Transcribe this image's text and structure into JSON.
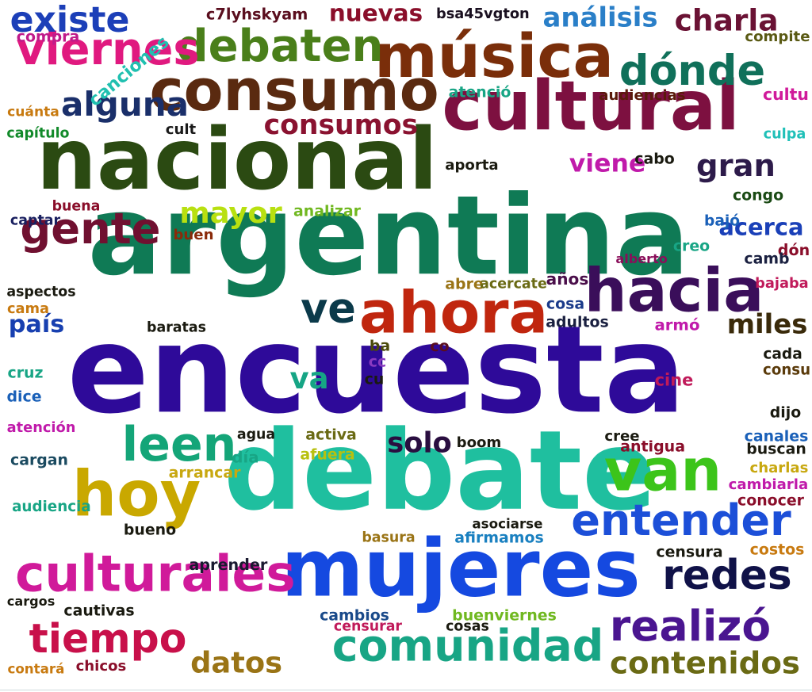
{
  "word_cloud": {
    "background": "#ffffff",
    "words": [
      {
        "text": "encuesta",
        "color": "#2E0A99"
      },
      {
        "text": "argentina",
        "color": "#0F7A55"
      },
      {
        "text": "debate",
        "color": "#1FBF9F"
      },
      {
        "text": "nacional",
        "color": "#2B4A12"
      },
      {
        "text": "mujeres",
        "color": "#1549E0"
      },
      {
        "text": "cultural",
        "color": "#7D1040"
      },
      {
        "text": "consumo",
        "color": "#5A2A10"
      },
      {
        "text": "música",
        "color": "#7A2E0A"
      },
      {
        "text": "hoy",
        "color": "#C9A800"
      },
      {
        "text": "culturales",
        "color": "#D01A9A"
      },
      {
        "text": "hacia",
        "color": "#3A0E5A"
      },
      {
        "text": "ahora",
        "color": "#C0260E"
      },
      {
        "text": "debaten",
        "color": "#4A7F1A"
      },
      {
        "text": "comunidad",
        "color": "#18A585"
      },
      {
        "text": "tiempo",
        "color": "#C8104A"
      },
      {
        "text": "van",
        "color": "#3CC41A"
      },
      {
        "text": "realizó",
        "color": "#4A1590"
      },
      {
        "text": "entender",
        "color": "#1C4FD8"
      },
      {
        "text": "viernes",
        "color": "#E0197F"
      },
      {
        "text": "dónde",
        "color": "#10705A"
      },
      {
        "text": "gran",
        "color": "#2D1B4A"
      },
      {
        "text": "redes",
        "color": "#101248"
      },
      {
        "text": "leen",
        "color": "#14A578"
      },
      {
        "text": "gente",
        "color": "#701030"
      },
      {
        "text": "ve",
        "color": "#0B3A4A"
      },
      {
        "text": "datos",
        "color": "#9A7416"
      },
      {
        "text": "contenidos",
        "color": "#6A6A14"
      },
      {
        "text": "nuevas",
        "color": "#8A0E2A"
      },
      {
        "text": "existe",
        "color": "#1C3FB8"
      },
      {
        "text": "charla",
        "color": "#6A1234"
      },
      {
        "text": "análisis",
        "color": "#2A7FC8"
      },
      {
        "text": "consumos",
        "color": "#8A1230"
      },
      {
        "text": "alguna",
        "color": "#1A2F6A"
      },
      {
        "text": "mayor",
        "color": "#B8E010"
      },
      {
        "text": "viene",
        "color": "#C01AAA"
      },
      {
        "text": "acerca",
        "color": "#1A40B8"
      },
      {
        "text": "país",
        "color": "#1840B0"
      },
      {
        "text": "miles",
        "color": "#3A2A0A"
      },
      {
        "text": "solo",
        "color": "#2A0E40"
      },
      {
        "text": "va",
        "color": "#16A585"
      },
      {
        "text": "c7lyhskyam",
        "color": "#5A0E1E"
      },
      {
        "text": "bsa45vgton",
        "color": "#1A1020"
      },
      {
        "text": "compra",
        "color": "#C01A8A"
      },
      {
        "text": "compite",
        "color": "#5A5A14"
      },
      {
        "text": "canciones",
        "color": "#20C0B0"
      },
      {
        "text": "atenció",
        "color": "#18A585"
      },
      {
        "text": "audiencias",
        "color": "#5A1A0A"
      },
      {
        "text": "cultu",
        "color": "#D01A9A"
      },
      {
        "text": "cuánta",
        "color": "#C87A10"
      },
      {
        "text": "capítulo",
        "color": "#128A2A"
      },
      {
        "text": "cult",
        "color": "#1A1A1A"
      },
      {
        "text": "culpa",
        "color": "#20C0B8"
      },
      {
        "text": "aporta",
        "color": "#1A1A10"
      },
      {
        "text": "cabo",
        "color": "#1A1A10"
      },
      {
        "text": "congo",
        "color": "#1A4A14"
      },
      {
        "text": "buena",
        "color": "#8A0E2A"
      },
      {
        "text": "analizar",
        "color": "#70B820"
      },
      {
        "text": "captar",
        "color": "#1A2060"
      },
      {
        "text": "buen",
        "color": "#8A2A0A"
      },
      {
        "text": "bajó",
        "color": "#1A60B8"
      },
      {
        "text": "dón",
        "color": "#8A0E2A"
      },
      {
        "text": "creo",
        "color": "#18A585"
      },
      {
        "text": "alberto",
        "color": "#8A0E5A"
      },
      {
        "text": "camb",
        "color": "#1A2040"
      },
      {
        "text": "años",
        "color": "#4A0E4A"
      },
      {
        "text": "abre",
        "color": "#9A7416"
      },
      {
        "text": "acercate",
        "color": "#6A6A14"
      },
      {
        "text": "aspectos",
        "color": "#1A1A10"
      },
      {
        "text": "cama",
        "color": "#C87A10"
      },
      {
        "text": "cosa",
        "color": "#1A3A8A"
      },
      {
        "text": "bajaba",
        "color": "#C01A5A"
      },
      {
        "text": "adultos",
        "color": "#1A2040"
      },
      {
        "text": "baratas",
        "color": "#1A1A10"
      },
      {
        "text": "armó",
        "color": "#C01AAA"
      },
      {
        "text": "co",
        "color": "#5A0E1E"
      },
      {
        "text": "ba",
        "color": "#4A4A0A"
      },
      {
        "text": "cc",
        "color": "#8A3AC0"
      },
      {
        "text": "cu",
        "color": "#1A1A10"
      },
      {
        "text": "cruz",
        "color": "#18A585"
      },
      {
        "text": "cada",
        "color": "#1A1A10"
      },
      {
        "text": "consu",
        "color": "#5A3A0A"
      },
      {
        "text": "cine",
        "color": "#C01A5A"
      },
      {
        "text": "dice",
        "color": "#1A60B8"
      },
      {
        "text": "dijo",
        "color": "#1A1A10"
      },
      {
        "text": "atención",
        "color": "#C01AAA"
      },
      {
        "text": "agua",
        "color": "#1A1A10"
      },
      {
        "text": "activa",
        "color": "#6A6A14"
      },
      {
        "text": "boom",
        "color": "#1A1A10"
      },
      {
        "text": "cree",
        "color": "#1A1A10"
      },
      {
        "text": "canales",
        "color": "#1A60B8"
      },
      {
        "text": "día",
        "color": "#18A585"
      },
      {
        "text": "afuera",
        "color": "#B8C010"
      },
      {
        "text": "antigua",
        "color": "#8A0E2A"
      },
      {
        "text": "buscan",
        "color": "#1A1A10"
      },
      {
        "text": "cargan",
        "color": "#1A4A60"
      },
      {
        "text": "arrancar",
        "color": "#C8A810"
      },
      {
        "text": "charlas",
        "color": "#C8A810"
      },
      {
        "text": "audiencia",
        "color": "#18A585"
      },
      {
        "text": "cambiarla",
        "color": "#C01AAA"
      },
      {
        "text": "conocer",
        "color": "#8A0E2A"
      },
      {
        "text": "asociarse",
        "color": "#1A1A10"
      },
      {
        "text": "bueno",
        "color": "#1A1A10"
      },
      {
        "text": "basura",
        "color": "#9A7416"
      },
      {
        "text": "afirmamos",
        "color": "#1A80C0"
      },
      {
        "text": "censura",
        "color": "#1A1A10"
      },
      {
        "text": "costos",
        "color": "#C87A10"
      },
      {
        "text": "aprender",
        "color": "#1A1A30"
      },
      {
        "text": "cargos",
        "color": "#1A1A10"
      },
      {
        "text": "cautivas",
        "color": "#1A1A10"
      },
      {
        "text": "cambios",
        "color": "#1A4A8A"
      },
      {
        "text": "buenviernes",
        "color": "#70B820"
      },
      {
        "text": "censurar",
        "color": "#C01A5A"
      },
      {
        "text": "cosas",
        "color": "#1A1A10"
      },
      {
        "text": "contará",
        "color": "#C87A10"
      },
      {
        "text": "chicos",
        "color": "#8A0E2A"
      }
    ]
  }
}
